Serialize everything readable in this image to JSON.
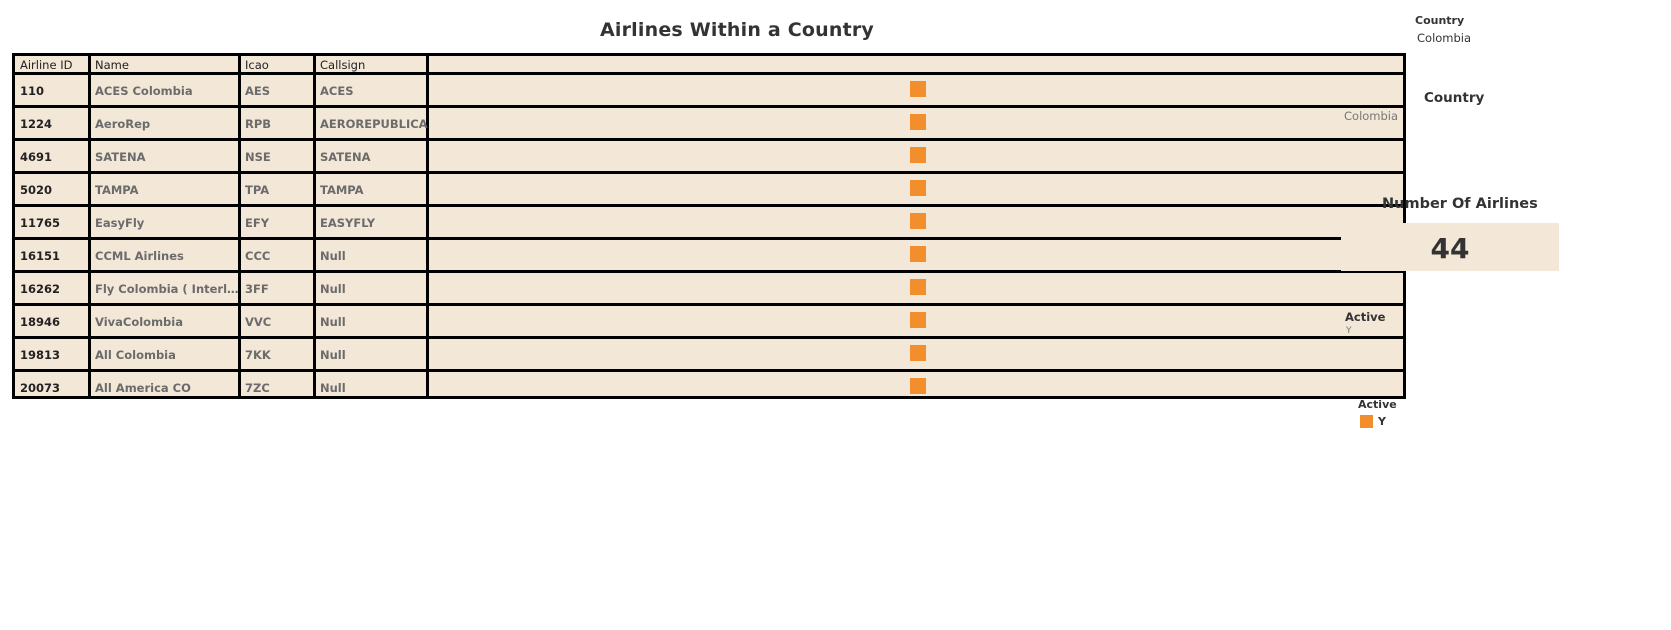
{
  "title": "Airlines Within a Country",
  "columns": [
    "Airline ID",
    "Name",
    "Icao",
    "Callsign",
    ""
  ],
  "rows": [
    {
      "id": "110",
      "name": "ACES Colombia",
      "icao": "AES",
      "callsign": "ACES",
      "active": "Y"
    },
    {
      "id": "1224",
      "name": "AeroRep",
      "icao": "RPB",
      "callsign": "AEROREPUBLICA",
      "active": "Y"
    },
    {
      "id": "4691",
      "name": "SATENA",
      "icao": "NSE",
      "callsign": "SATENA",
      "active": "Y"
    },
    {
      "id": "5020",
      "name": "TAMPA",
      "icao": "TPA",
      "callsign": "TAMPA",
      "active": "Y"
    },
    {
      "id": "11765",
      "name": "EasyFly",
      "icao": "EFY",
      "callsign": "EASYFLY",
      "active": "Y"
    },
    {
      "id": "16151",
      "name": "CCML Airlines",
      "icao": "CCC",
      "callsign": "Null",
      "active": "Y"
    },
    {
      "id": "16262",
      "name": "Fly Colombia ( Interliging ..",
      "icao": "3FF",
      "callsign": "Null",
      "active": "Y"
    },
    {
      "id": "18946",
      "name": "VivaColombia",
      "icao": "VVC",
      "callsign": "Null",
      "active": "Y"
    },
    {
      "id": "19813",
      "name": "All Colombia",
      "icao": "7KK",
      "callsign": "Null",
      "active": "Y"
    },
    {
      "id": "20073",
      "name": "All America CO",
      "icao": "7ZC",
      "callsign": "Null",
      "active": "Y"
    }
  ],
  "filters": {
    "country_small_label": "Country",
    "country_small_value": "Colombia",
    "country_label": "Country",
    "country_value": "Colombia",
    "active_label": "Active",
    "active_value": "Y"
  },
  "kpi": {
    "label": "Number Of Airlines",
    "value": "44"
  },
  "legend": {
    "title": "Active",
    "items": [
      {
        "label": "Y",
        "color": "#f28e2b"
      }
    ]
  },
  "colors": {
    "mark": "#f28e2b",
    "table_bg": "#f3e7d7"
  }
}
